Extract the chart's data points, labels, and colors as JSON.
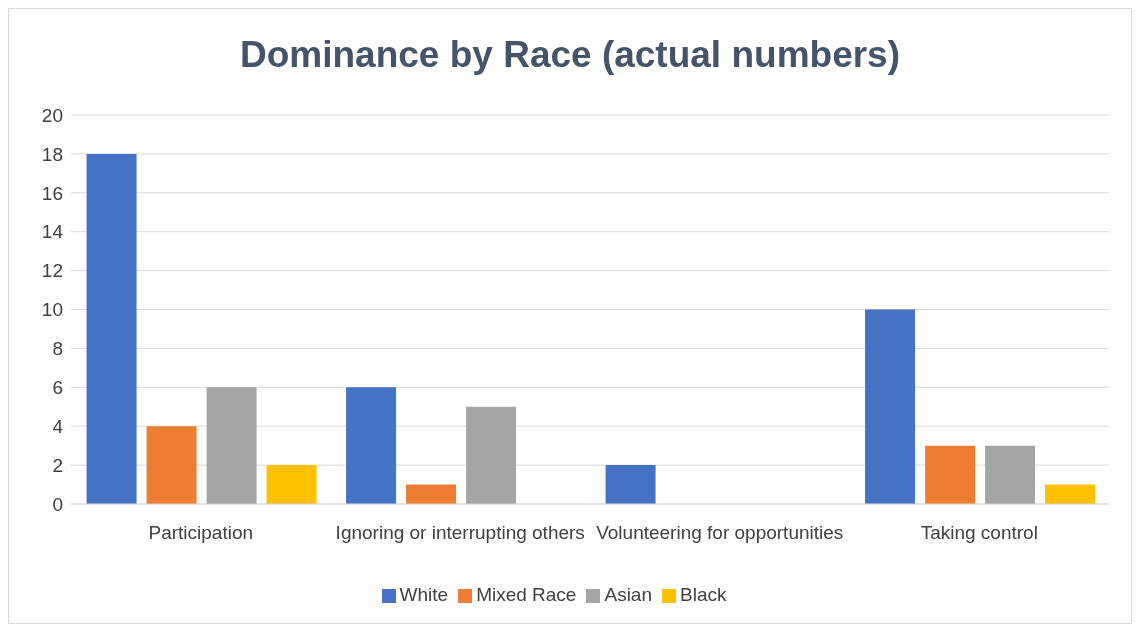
{
  "chart_data": {
    "type": "bar",
    "title": "Dominance by Race (actual numbers)",
    "categories": [
      "Participation",
      "Ignoring or interrupting others",
      "Volunteering for opportunities",
      "Taking control"
    ],
    "series": [
      {
        "name": "White",
        "color": "#4472c4",
        "values": [
          18,
          6,
          2,
          10
        ]
      },
      {
        "name": "Mixed Race",
        "color": "#ed7d31",
        "values": [
          4,
          1,
          0,
          3
        ]
      },
      {
        "name": "Asian",
        "color": "#a5a5a5",
        "values": [
          6,
          5,
          0,
          3
        ]
      },
      {
        "name": "Black",
        "color": "#ffc000",
        "values": [
          2,
          0,
          0,
          1
        ]
      }
    ],
    "ylim": [
      0,
      20
    ],
    "yticks": [
      0,
      2,
      4,
      6,
      8,
      10,
      12,
      14,
      16,
      18,
      20
    ],
    "grid": "y",
    "legend": "bottom"
  }
}
